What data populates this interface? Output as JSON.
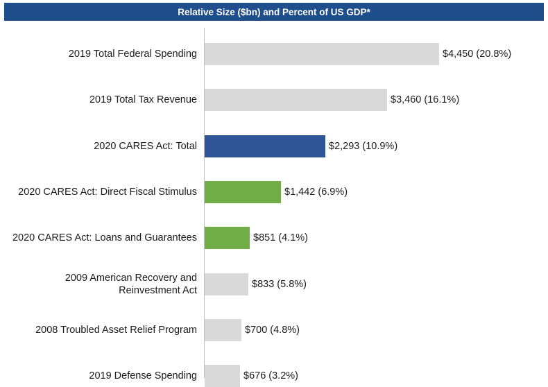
{
  "chart_data": {
    "type": "bar",
    "orientation": "horizontal",
    "title": "Relative Size ($bn) and Percent of US GDP*",
    "categories": [
      "2019 Total Federal Spending",
      "2019 Total Tax Revenue",
      "2020 CARES Act: Total",
      "2020 CARES Act: Direct Fiscal Stimulus",
      "2020 CARES Act: Loans and Guarantees",
      "2009 American Recovery and Reinvestment Act",
      "2008 Troubled Asset Relief Program",
      "2019 Defense Spending"
    ],
    "values": [
      4450,
      3460,
      2293,
      1442,
      851,
      833,
      700,
      676
    ],
    "value_labels": [
      "$4,450 (20.8%)",
      "$3,460 (16.1%)",
      "$2,293 (10.9%)",
      "$1,442 (6.9%)",
      "$851 (4.1%)",
      "$833 (5.8%)",
      "$700 (4.8%)",
      "$676 (3.2%)"
    ],
    "bar_colors": [
      "#d9d9d9",
      "#d9d9d9",
      "#2e5597",
      "#70ad47",
      "#70ad47",
      "#d9d9d9",
      "#d9d9d9",
      "#d9d9d9"
    ],
    "xlim": [
      0,
      4450
    ],
    "grid": false,
    "legend": "none"
  },
  "colors": {
    "title_bg": "#1f4e8c",
    "highlight_blue": "#2e5597",
    "highlight_green": "#70ad47",
    "neutral_gray": "#d9d9d9"
  }
}
